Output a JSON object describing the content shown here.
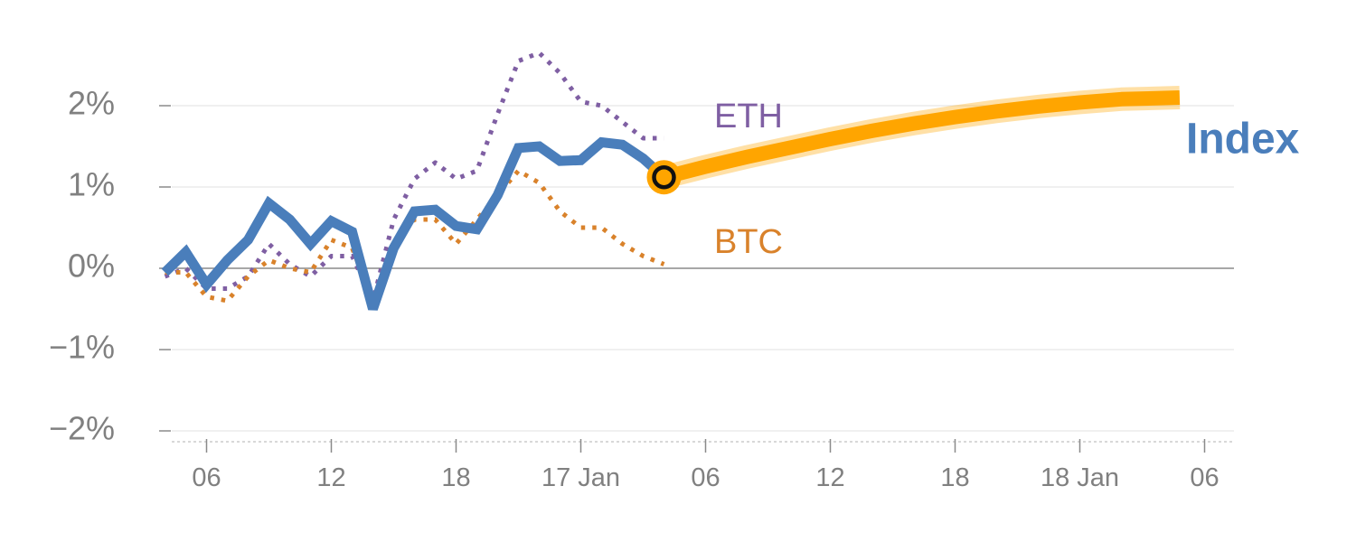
{
  "chart_data": {
    "type": "line",
    "y_axis": {
      "ticks": [
        2,
        1,
        0,
        -1,
        -2
      ],
      "tick_labels": [
        "2%",
        "1%",
        "0%",
        "−1%",
        "−2%"
      ],
      "ylim": [
        -2.1,
        2.9
      ]
    },
    "x_axis": {
      "ticks": [
        2,
        8,
        14,
        20,
        26,
        32,
        38,
        44,
        50
      ],
      "tick_labels": [
        "06",
        "12",
        "18",
        "17 Jan",
        "06",
        "12",
        "18",
        "18 Jan",
        "06"
      ],
      "xlim": [
        -1.5,
        50
      ]
    },
    "zero_line": true,
    "grid": true,
    "series": [
      {
        "name": "ETH",
        "style": "dotted",
        "color": "#7f5fa3",
        "x": [
          0,
          1,
          2,
          3,
          4,
          5,
          6,
          7,
          8,
          9,
          10,
          11,
          12,
          13,
          14,
          15,
          16,
          17,
          18,
          19,
          20,
          21,
          22,
          23,
          24
        ],
        "y": [
          -0.1,
          0.0,
          -0.25,
          -0.25,
          -0.1,
          0.3,
          0.05,
          -0.1,
          0.15,
          0.15,
          -0.4,
          0.6,
          1.1,
          1.3,
          1.1,
          1.2,
          1.9,
          2.55,
          2.65,
          2.4,
          2.05,
          2.0,
          1.8,
          1.6,
          1.6
        ]
      },
      {
        "name": "BTC",
        "style": "dotted",
        "color": "#d9822b",
        "x": [
          0,
          1,
          2,
          3,
          4,
          5,
          6,
          7,
          8,
          9,
          10,
          11,
          12,
          13,
          14,
          15,
          16,
          17,
          18,
          19,
          20,
          21,
          22,
          23,
          24
        ],
        "y": [
          -0.05,
          -0.05,
          -0.35,
          -0.4,
          -0.1,
          0.1,
          0.0,
          -0.05,
          0.35,
          0.25,
          -0.4,
          0.3,
          0.6,
          0.6,
          0.3,
          0.6,
          0.9,
          1.2,
          1.05,
          0.7,
          0.5,
          0.5,
          0.3,
          0.15,
          0.05
        ]
      },
      {
        "name": "Index",
        "style": "solid",
        "color": "#4a7ebb",
        "x": [
          0,
          1,
          2,
          3,
          4,
          5,
          6,
          7,
          8,
          9,
          10,
          11,
          12,
          13,
          14,
          15,
          16,
          17,
          18,
          19,
          20,
          21,
          22,
          23,
          24
        ],
        "y": [
          -0.05,
          0.2,
          -0.2,
          0.1,
          0.35,
          0.8,
          0.6,
          0.3,
          0.58,
          0.45,
          -0.5,
          0.25,
          0.7,
          0.72,
          0.52,
          0.48,
          0.9,
          1.48,
          1.5,
          1.32,
          1.33,
          1.55,
          1.52,
          1.35,
          1.12
        ]
      }
    ],
    "projection": {
      "color": "#ffa500",
      "x": [
        24,
        26,
        28,
        30,
        32,
        34,
        36,
        38,
        40,
        42,
        44,
        46,
        48.8
      ],
      "y": [
        1.12,
        1.25,
        1.37,
        1.48,
        1.59,
        1.69,
        1.78,
        1.86,
        1.93,
        1.99,
        2.04,
        2.08,
        2.1
      ]
    },
    "marker": {
      "x": 24,
      "y": 1.12
    }
  }
}
